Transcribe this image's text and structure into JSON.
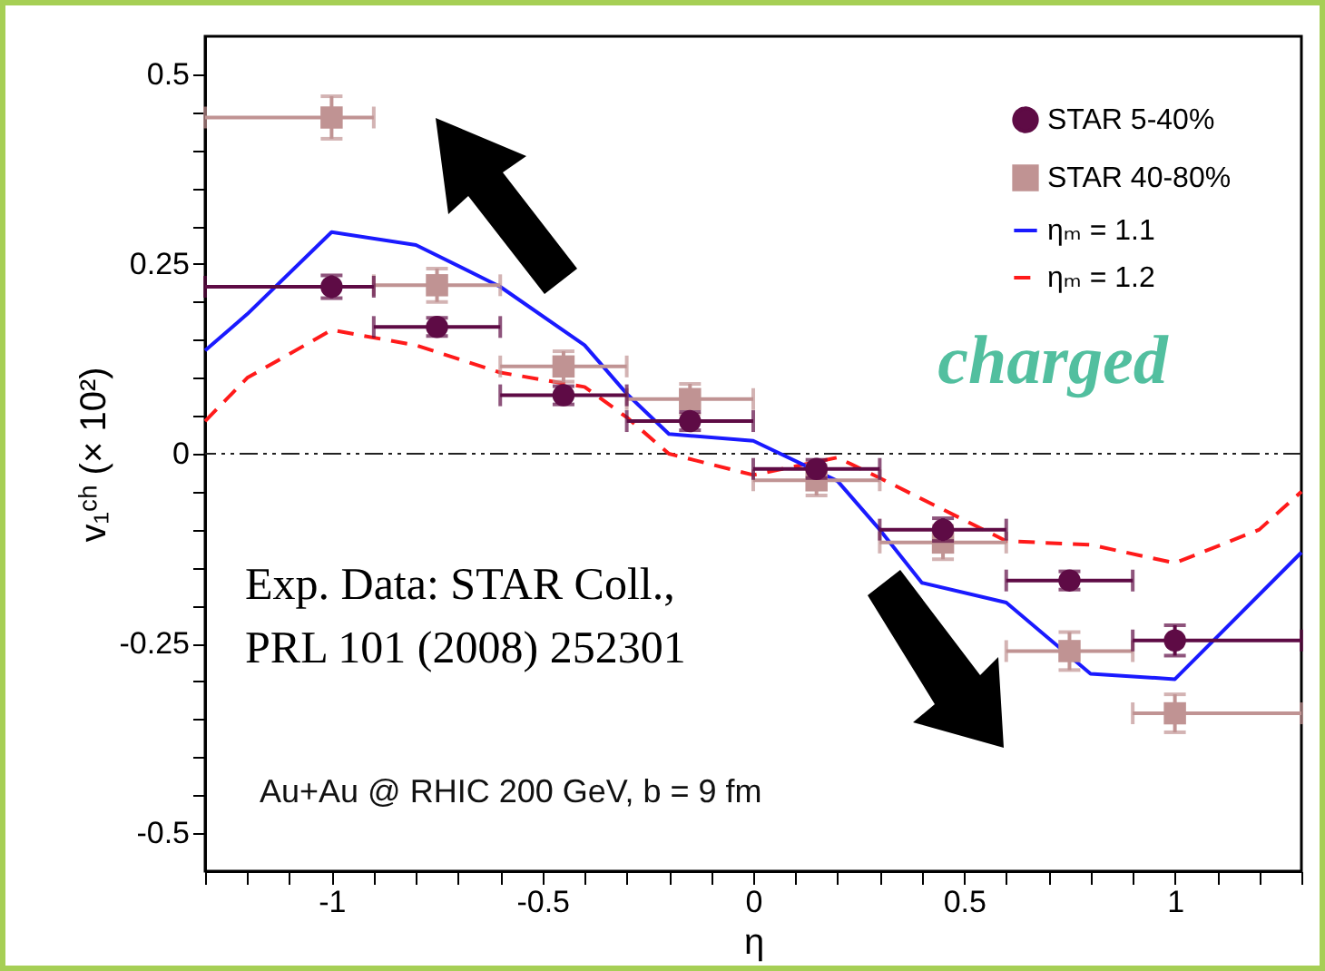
{
  "chart_data": {
    "type": "scatter",
    "xlabel": "η",
    "ylabel": "v₁ᶜʰ (× 10²)",
    "xlim": [
      -1.3,
      1.3
    ],
    "ylim": [
      -0.55,
      0.55
    ],
    "xticks": [
      {
        "value": -1.3,
        "label": null
      },
      {
        "value": -1.2,
        "label": null
      },
      {
        "value": -1.1,
        "label": null
      },
      -1,
      {
        "value": -0.9,
        "label": null
      },
      {
        "value": -0.8,
        "label": null
      },
      {
        "value": -0.7,
        "label": null
      },
      {
        "value": -0.6,
        "label": null
      },
      -0.5,
      {
        "value": -0.4,
        "label": null
      },
      {
        "value": -0.3,
        "label": null
      },
      {
        "value": -0.2,
        "label": null
      },
      {
        "value": -0.1,
        "label": null
      },
      0,
      {
        "value": 0.1,
        "label": null
      },
      {
        "value": 0.2,
        "label": null
      },
      {
        "value": 0.3,
        "label": null
      },
      {
        "value": 0.4,
        "label": null
      },
      0.5,
      {
        "value": 0.6,
        "label": null
      },
      {
        "value": 0.7,
        "label": null
      },
      {
        "value": 0.8,
        "label": null
      },
      {
        "value": 0.9,
        "label": null
      },
      1,
      {
        "value": 1.1,
        "label": null
      },
      {
        "value": 1.2,
        "label": null
      },
      {
        "value": 1.3,
        "label": null
      }
    ],
    "yticks": [
      -0.5,
      {
        "value": -0.45,
        "label": null
      },
      {
        "value": -0.4,
        "label": null
      },
      {
        "value": -0.35,
        "label": null
      },
      {
        "value": -0.3,
        "label": null
      },
      -0.25,
      {
        "value": -0.2,
        "label": null
      },
      {
        "value": -0.15,
        "label": null
      },
      {
        "value": -0.1,
        "label": null
      },
      {
        "value": -0.05,
        "label": null
      },
      0,
      {
        "value": 0.05,
        "label": null
      },
      {
        "value": 0.1,
        "label": null
      },
      {
        "value": 0.15,
        "label": null
      },
      {
        "value": 0.2,
        "label": null
      },
      0.25,
      {
        "value": 0.3,
        "label": null
      },
      {
        "value": 0.35,
        "label": null
      },
      {
        "value": 0.4,
        "label": null
      },
      {
        "value": 0.45,
        "label": null
      },
      0.5
    ],
    "grid": false,
    "legend": "top right",
    "series": [
      {
        "name": "STAR 5-40%",
        "type": "scatter",
        "marker": "circle",
        "color": "#5e0b45",
        "x": [
          -1.0,
          -0.75,
          -0.45,
          -0.15,
          0.15,
          0.45,
          0.75,
          1.0
        ],
        "values": [
          0.22,
          0.167,
          0.077,
          0.043,
          -0.02,
          -0.1,
          -0.167,
          -0.246
        ],
        "errors": [
          0.015,
          0.012,
          0.012,
          0.012,
          0.012,
          0.015,
          0.012,
          0.02
        ],
        "xerrors": [
          [
            -1.3,
            -0.9
          ],
          [
            -0.9,
            -0.6
          ],
          [
            -0.6,
            -0.3
          ],
          [
            -0.3,
            0
          ],
          [
            0,
            0.3
          ],
          [
            0.3,
            0.6
          ],
          [
            0.6,
            0.9
          ],
          [
            0.9,
            1.3
          ]
        ]
      },
      {
        "name": "STAR 40-80%",
        "type": "scatter",
        "marker": "square",
        "color": "#c09393",
        "x": [
          -1.0,
          -0.75,
          -0.45,
          -0.15,
          0.15,
          0.45,
          0.75,
          1.0
        ],
        "values": [
          0.443,
          0.222,
          0.115,
          0.072,
          -0.035,
          -0.117,
          -0.26,
          -0.342
        ],
        "errors": [
          0.028,
          0.022,
          0.02,
          0.02,
          0.02,
          0.022,
          0.025,
          0.025
        ],
        "xerrors": [
          [
            -1.3,
            -0.9
          ],
          [
            -0.9,
            -0.6
          ],
          [
            -0.6,
            -0.3
          ],
          [
            -0.3,
            0
          ],
          [
            0,
            0.3
          ],
          [
            0.3,
            0.6
          ],
          [
            0.6,
            0.9
          ],
          [
            0.9,
            1.3
          ]
        ]
      },
      {
        "name": "ηₘ = 1.1",
        "type": "line",
        "line_style": "solid",
        "color": "#1a1aff",
        "x": [
          -1.3,
          -1.2,
          -1.0,
          -0.8,
          -0.6,
          -0.4,
          -0.3,
          -0.2,
          0,
          0.2,
          0.3,
          0.4,
          0.6,
          0.8,
          1.0,
          1.3
        ],
        "values": [
          0.136,
          0.184,
          0.292,
          0.275,
          0.22,
          0.143,
          0.079,
          0.026,
          0.017,
          -0.036,
          -0.1,
          -0.17,
          -0.196,
          -0.29,
          -0.297,
          -0.13
        ]
      },
      {
        "name": "ηₘ = 1.2",
        "type": "line",
        "line_style": "dashed",
        "color": "#ff1a1a",
        "x": [
          -1.3,
          -1.2,
          -1.0,
          -0.8,
          -0.6,
          -0.4,
          -0.3,
          -0.2,
          0,
          0.2,
          0.3,
          0.6,
          0.8,
          1.0,
          1.2,
          1.3
        ],
        "values": [
          0.043,
          0.1,
          0.163,
          0.143,
          0.107,
          0.088,
          0.048,
          0.0,
          -0.028,
          -0.005,
          -0.032,
          -0.115,
          -0.12,
          -0.144,
          -0.1,
          -0.05
        ]
      }
    ],
    "ref_lines": [
      {
        "axis": "y",
        "value": 0,
        "color": "#222222",
        "line_style": "dashdot"
      }
    ],
    "annotations": [
      "charged",
      "Exp. Data: STAR Coll.,\nPRL 101 (2008) 252301",
      "Au+Au @ RHIC 200 GeV,  b = 9 fm"
    ]
  }
}
